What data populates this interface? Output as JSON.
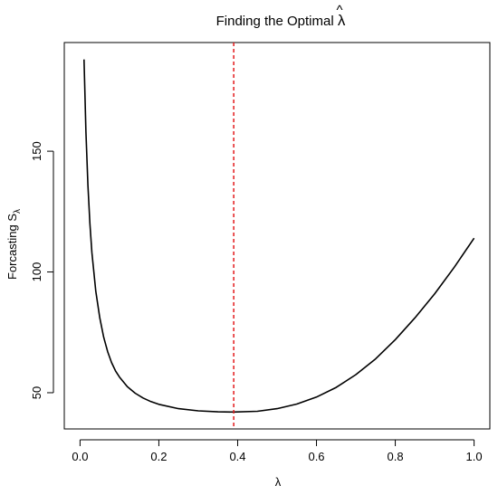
{
  "chart_data": {
    "type": "line",
    "title": "Finding the Optimal λ̂",
    "title_text": "Finding the Optimal ",
    "title_symbol": "λ",
    "title_hat": "^",
    "xlabel": "λ",
    "ylabel": "Forcasting S",
    "ylabel_subscript": "λ",
    "xlim": [
      -0.04,
      1.04
    ],
    "ylim": [
      35,
      195
    ],
    "x_ticks": [
      0.0,
      0.2,
      0.4,
      0.6,
      0.8,
      1.0
    ],
    "x_tick_labels": [
      "0.0",
      "0.2",
      "0.4",
      "0.6",
      "0.8",
      "1.0"
    ],
    "y_ticks": [
      50,
      100,
      150
    ],
    "y_tick_labels": [
      "50",
      "100",
      "150"
    ],
    "grid": false,
    "series": [
      {
        "color": "#000000",
        "x": [
          0.01,
          0.015,
          0.02,
          0.025,
          0.03,
          0.04,
          0.05,
          0.06,
          0.07,
          0.08,
          0.09,
          0.1,
          0.12,
          0.14,
          0.16,
          0.18,
          0.2,
          0.25,
          0.3,
          0.35,
          0.39,
          0.45,
          0.5,
          0.55,
          0.6,
          0.65,
          0.7,
          0.75,
          0.8,
          0.85,
          0.9,
          0.95,
          1.0
        ],
        "y": [
          188,
          158,
          136,
          120,
          108,
          92,
          81,
          73,
          67,
          62.5,
          59,
          56.5,
          52.5,
          49.8,
          47.8,
          46.3,
          45.2,
          43.4,
          42.5,
          42.1,
          42.0,
          42.3,
          43.4,
          45.3,
          48.2,
          52.2,
          57.5,
          64.0,
          72.0,
          81.0,
          91.0,
          102.0,
          114.0
        ]
      }
    ],
    "vline": {
      "x": 0.39,
      "color": "#e31a1c",
      "style": "dashed"
    }
  }
}
